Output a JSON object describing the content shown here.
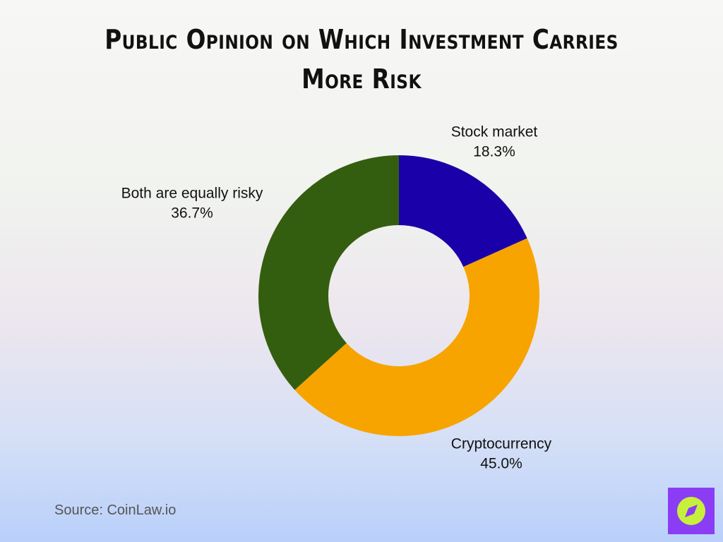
{
  "chart_data": {
    "type": "donut",
    "title": "Public Opinion on Which Investment Carries More Risk",
    "categories": [
      "Stock market",
      "Cryptocurrency",
      "Both are equally risky"
    ],
    "values": [
      18.3,
      45.0,
      36.7
    ],
    "value_labels": [
      "18.3%",
      "45.0%",
      "36.7%"
    ],
    "colors": [
      "#1a00a8",
      "#f7a400",
      "#345e0f"
    ],
    "source": "Source: CoinLaw.io"
  }
}
